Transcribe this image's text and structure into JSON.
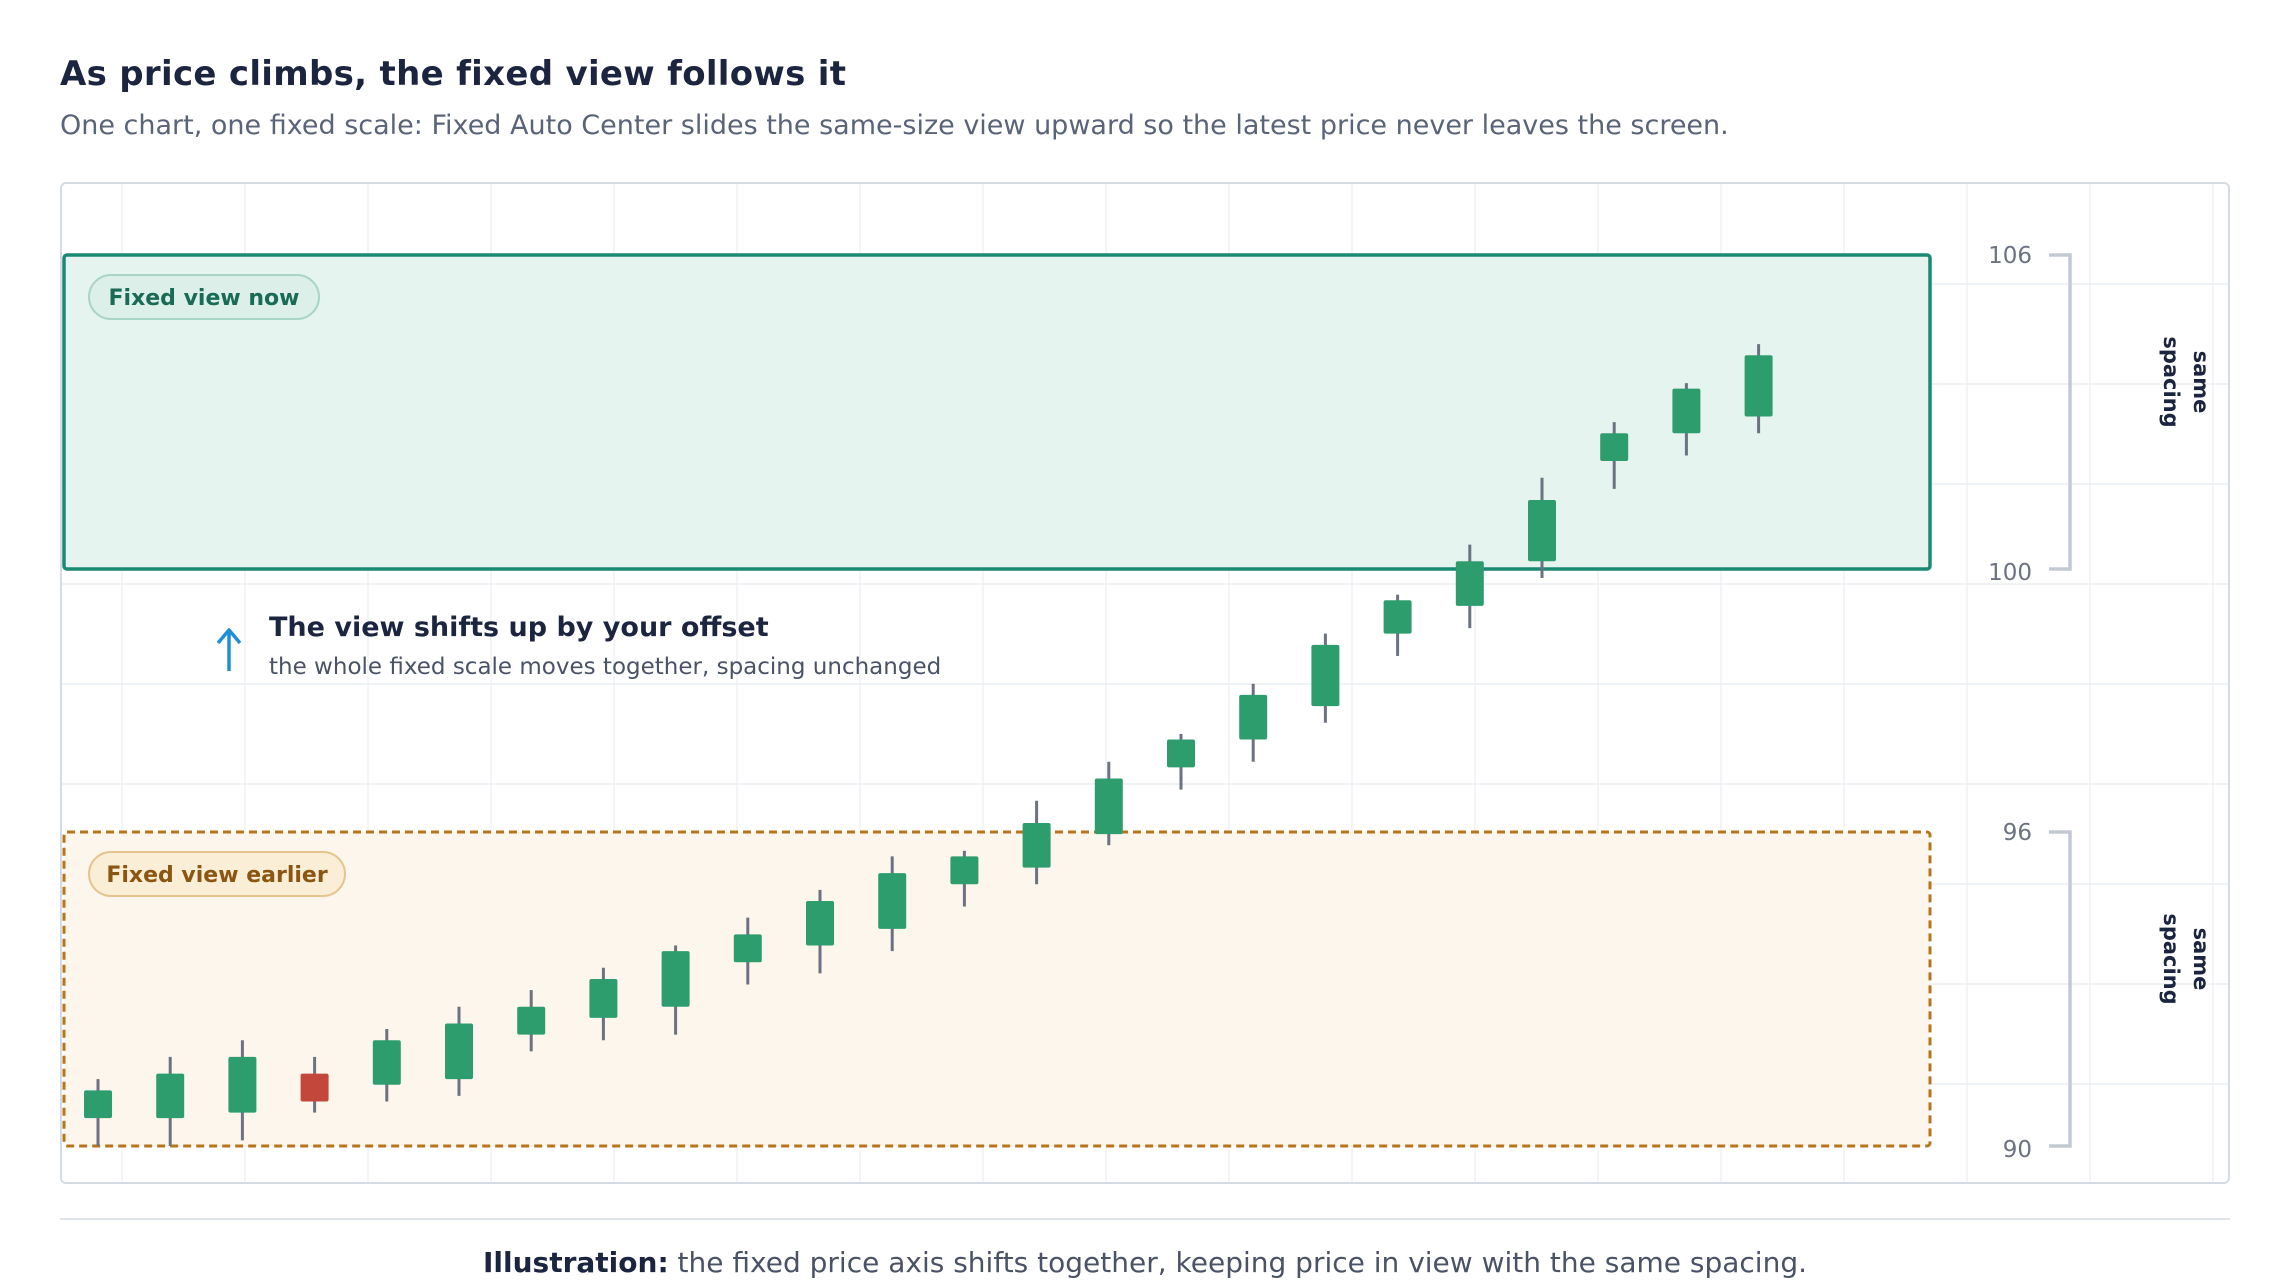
{
  "header": {
    "title": "As price climbs, the fixed view follows it",
    "subtitle": "One chart, one fixed scale: Fixed Auto Center slides the same-size view upward so the latest price never leaves the screen."
  },
  "caption": {
    "bold": "Illustration:",
    "text": " the fixed price axis shifts together, keeping price in view with the same spacing."
  },
  "colors": {
    "up": "#2e9d6e",
    "down": "#c4473b",
    "wick": "#6b7280",
    "now_box": "#1a8a74",
    "earlier_box": "#b8741a",
    "arrow": "#1f8fd6"
  },
  "chart_data": {
    "type": "candlestick",
    "y_tick_labels": [
      "106",
      "100",
      "96",
      "90"
    ],
    "now_view": {
      "label": "Fixed view now",
      "range": [
        100,
        106
      ],
      "bracket_label": "same spacing"
    },
    "earlier_view": {
      "label": "Fixed view earlier",
      "range": [
        90,
        96
      ],
      "bracket_label": "same spacing"
    },
    "annotation": {
      "title": "The view shifts up by your offset",
      "subtitle": "the whole fixed scale moves together, spacing unchanged"
    },
    "candles": [
      {
        "o": 90.5,
        "h": 91.2,
        "l": 90.0,
        "c": 91.0
      },
      {
        "o": 90.5,
        "h": 91.6,
        "l": 90.0,
        "c": 91.3
      },
      {
        "o": 90.6,
        "h": 91.9,
        "l": 90.1,
        "c": 91.6
      },
      {
        "o": 91.3,
        "h": 91.6,
        "l": 90.6,
        "c": 90.8
      },
      {
        "o": 91.1,
        "h": 92.1,
        "l": 90.8,
        "c": 91.9
      },
      {
        "o": 91.2,
        "h": 92.5,
        "l": 90.9,
        "c": 92.2
      },
      {
        "o": 92.0,
        "h": 92.8,
        "l": 91.7,
        "c": 92.5
      },
      {
        "o": 92.3,
        "h": 93.2,
        "l": 91.9,
        "c": 93.0
      },
      {
        "o": 92.5,
        "h": 93.6,
        "l": 92.0,
        "c": 93.5
      },
      {
        "o": 93.3,
        "h": 94.1,
        "l": 92.9,
        "c": 93.8
      },
      {
        "o": 93.6,
        "h": 94.6,
        "l": 93.1,
        "c": 94.4
      },
      {
        "o": 93.9,
        "h": 95.2,
        "l": 93.5,
        "c": 94.9
      },
      {
        "o": 94.7,
        "h": 95.3,
        "l": 94.3,
        "c": 95.2
      },
      {
        "o": 95.0,
        "h": 96.2,
        "l": 94.7,
        "c": 95.8
      },
      {
        "o": 95.6,
        "h": 96.9,
        "l": 95.4,
        "c": 96.6
      },
      {
        "o": 96.8,
        "h": 97.4,
        "l": 96.4,
        "c": 97.3
      },
      {
        "o": 97.3,
        "h": 98.3,
        "l": 96.9,
        "c": 98.1
      },
      {
        "o": 97.9,
        "h": 99.2,
        "l": 97.6,
        "c": 99.0
      },
      {
        "o": 99.2,
        "h": 99.9,
        "l": 98.8,
        "c": 99.8
      },
      {
        "o": 99.7,
        "h": 100.8,
        "l": 99.3,
        "c": 100.5
      },
      {
        "o": 100.5,
        "h": 102.0,
        "l": 100.2,
        "c": 101.6
      },
      {
        "o": 102.3,
        "h": 103.0,
        "l": 101.8,
        "c": 102.8
      },
      {
        "o": 102.8,
        "h": 103.7,
        "l": 102.4,
        "c": 103.6
      },
      {
        "o": 103.1,
        "h": 104.4,
        "l": 102.8,
        "c": 104.2
      }
    ]
  }
}
